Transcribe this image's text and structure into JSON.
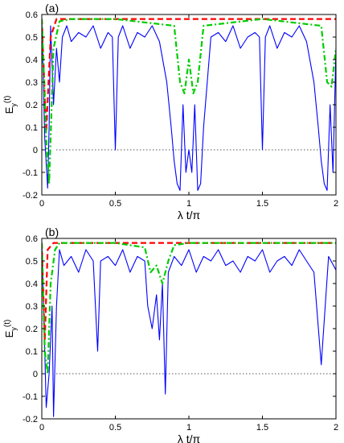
{
  "chart_data": [
    {
      "type": "line",
      "panel_label": "(a)",
      "xlabel": "λ t/π",
      "ylabel": "E_y(t)",
      "ylabel_main": "E",
      "ylabel_sub": "y",
      "ylabel_arg": "(t)",
      "xlim": [
        0,
        2
      ],
      "ylim": [
        -0.2,
        0.6
      ],
      "xticks": [
        0,
        0.5,
        1,
        1.5,
        2
      ],
      "xtick_labels": [
        "0",
        "0.5",
        "1",
        "1.5",
        "2"
      ],
      "yticks": [
        -0.2,
        -0.1,
        0,
        0.1,
        0.2,
        0.3,
        0.4,
        0.5,
        0.6
      ],
      "ytick_labels": [
        "-0.2",
        "-0.1",
        "0",
        "0.1",
        "0.2",
        "0.3",
        "0.4",
        "0.5",
        "0.6"
      ],
      "reference_line": {
        "y": 0,
        "style": "dotted",
        "color": "#000000"
      },
      "series": [
        {
          "style": "solid",
          "color": "#0000ff",
          "x": [
            0,
            0.02,
            0.04,
            0.05,
            0.06,
            0.08,
            0.1,
            0.12,
            0.14,
            0.17,
            0.2,
            0.25,
            0.3,
            0.35,
            0.4,
            0.45,
            0.48,
            0.5,
            0.52,
            0.55,
            0.6,
            0.65,
            0.7,
            0.75,
            0.8,
            0.85,
            0.88,
            0.9,
            0.92,
            0.94,
            0.96,
            0.98,
            1.0,
            1.02,
            1.04,
            1.06,
            1.08,
            1.1,
            1.15,
            1.2,
            1.25,
            1.3,
            1.35,
            1.4,
            1.45,
            1.48,
            1.5,
            1.52,
            1.55,
            1.6,
            1.65,
            1.7,
            1.75,
            1.8,
            1.85,
            1.88,
            1.9,
            1.92,
            1.94,
            1.96,
            1.98,
            2.0
          ],
          "y": [
            0.58,
            0.05,
            -0.17,
            0.1,
            0.55,
            0.2,
            0.45,
            0.3,
            0.5,
            0.55,
            0.48,
            0.52,
            0.5,
            0.55,
            0.45,
            0.52,
            0.5,
            0.0,
            0.5,
            0.55,
            0.45,
            0.52,
            0.5,
            0.55,
            0.48,
            0.3,
            0.1,
            -0.05,
            -0.15,
            -0.18,
            0.2,
            -0.1,
            0.0,
            -0.1,
            0.2,
            -0.18,
            -0.15,
            0.1,
            0.5,
            0.52,
            0.48,
            0.55,
            0.45,
            0.5,
            0.52,
            0.5,
            0.0,
            0.5,
            0.55,
            0.45,
            0.52,
            0.5,
            0.55,
            0.48,
            0.3,
            0.1,
            -0.05,
            -0.15,
            -0.18,
            0.2,
            -0.1,
            0.45
          ]
        },
        {
          "style": "dashed",
          "color": "#ff0000",
          "x": [
            0,
            0.03,
            0.06,
            0.1,
            0.5,
            1.0,
            1.5,
            2.0
          ],
          "y": [
            0.58,
            0.08,
            0.5,
            0.58,
            0.58,
            0.58,
            0.58,
            0.58
          ]
        },
        {
          "style": "dash-dot",
          "color": "#00cc00",
          "x": [
            0,
            0.03,
            0.05,
            0.08,
            0.12,
            0.2,
            0.5,
            0.9,
            0.94,
            0.97,
            1.0,
            1.03,
            1.06,
            1.1,
            1.5,
            1.9,
            1.94,
            1.97,
            2.0
          ],
          "y": [
            0.58,
            0.05,
            -0.15,
            0.45,
            0.57,
            0.58,
            0.58,
            0.55,
            0.3,
            0.25,
            0.4,
            0.25,
            0.3,
            0.55,
            0.58,
            0.55,
            0.3,
            0.28,
            0.45
          ]
        }
      ]
    },
    {
      "type": "line",
      "panel_label": "(b)",
      "xlabel": "λ t/π",
      "ylabel": "E_y(t)",
      "ylabel_main": "E",
      "ylabel_sub": "y",
      "ylabel_arg": "(t)",
      "xlim": [
        0,
        2
      ],
      "ylim": [
        -0.2,
        0.6
      ],
      "xticks": [
        0,
        0.5,
        1,
        1.5,
        2
      ],
      "xtick_labels": [
        "0",
        "0.5",
        "1",
        "1.5",
        "2"
      ],
      "yticks": [
        -0.2,
        -0.1,
        0,
        0.1,
        0.2,
        0.3,
        0.4,
        0.5,
        0.6
      ],
      "ytick_labels": [
        "-0.2",
        "-0.1",
        "0",
        "0.1",
        "0.2",
        "0.3",
        "0.4",
        "0.5",
        "0.6"
      ],
      "reference_line": {
        "y": 0,
        "style": "dotted",
        "color": "#000000"
      },
      "series": [
        {
          "style": "solid",
          "color": "#0000ff",
          "x": [
            0,
            0.02,
            0.03,
            0.05,
            0.07,
            0.08,
            0.1,
            0.12,
            0.15,
            0.2,
            0.25,
            0.3,
            0.35,
            0.38,
            0.4,
            0.45,
            0.5,
            0.55,
            0.6,
            0.65,
            0.7,
            0.72,
            0.75,
            0.78,
            0.8,
            0.82,
            0.84,
            0.86,
            0.9,
            0.95,
            1.0,
            1.05,
            1.1,
            1.15,
            1.2,
            1.25,
            1.3,
            1.35,
            1.4,
            1.45,
            1.5,
            1.55,
            1.6,
            1.65,
            1.7,
            1.75,
            1.8,
            1.85,
            1.9,
            1.95,
            2.0
          ],
          "y": [
            0.58,
            0.1,
            -0.15,
            0.0,
            0.3,
            -0.19,
            0.3,
            0.55,
            0.48,
            0.52,
            0.45,
            0.55,
            0.5,
            0.1,
            0.5,
            0.52,
            0.48,
            0.55,
            0.45,
            0.52,
            0.5,
            0.3,
            0.2,
            0.35,
            0.15,
            0.4,
            -0.09,
            0.45,
            0.52,
            0.48,
            0.55,
            0.45,
            0.52,
            0.5,
            0.55,
            0.48,
            0.5,
            0.45,
            0.52,
            0.5,
            0.55,
            0.45,
            0.5,
            0.52,
            0.48,
            0.55,
            0.5,
            0.45,
            0.04,
            0.52,
            0.46
          ]
        },
        {
          "style": "dashed",
          "color": "#ff0000",
          "x": [
            0,
            0.02,
            0.04,
            0.08,
            0.5,
            1.0,
            1.5,
            2.0
          ],
          "y": [
            0.58,
            0.15,
            0.55,
            0.58,
            0.58,
            0.58,
            0.58,
            0.58
          ]
        },
        {
          "style": "dash-dot",
          "color": "#00cc00",
          "x": [
            0,
            0.02,
            0.04,
            0.06,
            0.09,
            0.12,
            0.5,
            0.7,
            0.74,
            0.78,
            0.82,
            0.86,
            0.9,
            1.0,
            1.5,
            2.0
          ],
          "y": [
            0.58,
            0.1,
            0.0,
            0.4,
            0.55,
            0.58,
            0.58,
            0.56,
            0.45,
            0.48,
            0.4,
            0.5,
            0.57,
            0.58,
            0.58,
            0.58
          ]
        }
      ]
    }
  ]
}
